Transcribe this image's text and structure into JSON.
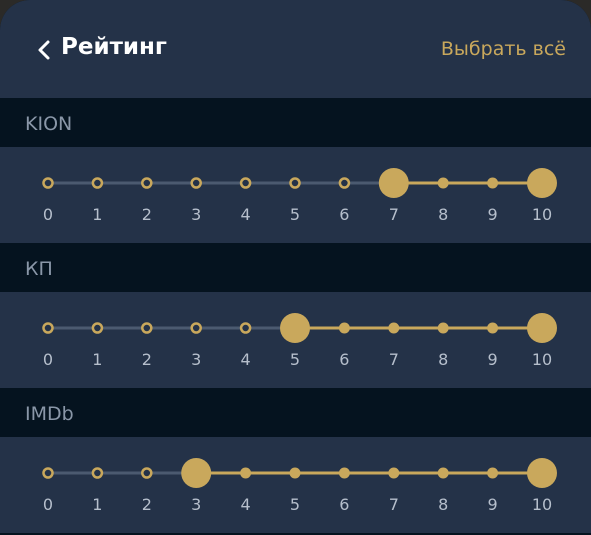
{
  "header": {
    "title": "Рейтинг",
    "select_all": "Выбрать всё",
    "back_icon": "chevron-left-icon"
  },
  "colors": {
    "accent": "#c9a85c",
    "track_inactive": "#4b5a70",
    "band_bg": "#243248",
    "section_bg": "#05131f"
  },
  "ratings": [
    {
      "id": "kion",
      "label": "KION",
      "ticks": [
        "0",
        "1",
        "2",
        "3",
        "4",
        "5",
        "6",
        "7",
        "8",
        "9",
        "10"
      ],
      "min_selected": 7,
      "max_selected": 10
    },
    {
      "id": "kp",
      "label": "КП",
      "ticks": [
        "0",
        "1",
        "2",
        "3",
        "4",
        "5",
        "6",
        "7",
        "8",
        "9",
        "10"
      ],
      "min_selected": 5,
      "max_selected": 10
    },
    {
      "id": "imdb",
      "label": "IMDb",
      "ticks": [
        "0",
        "1",
        "2",
        "3",
        "4",
        "5",
        "6",
        "7",
        "8",
        "9",
        "10"
      ],
      "min_selected": 3,
      "max_selected": 10
    }
  ]
}
